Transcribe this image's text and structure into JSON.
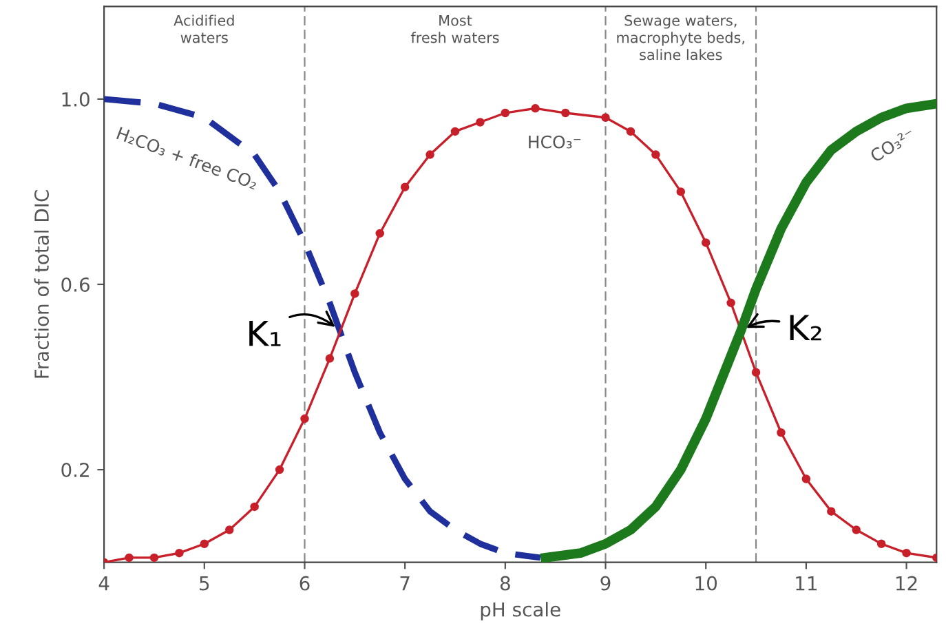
{
  "chart_data": {
    "type": "line",
    "xlabel": "pH scale",
    "ylabel": "Fraction of total DIC",
    "xlim": [
      4,
      12.3
    ],
    "ylim": [
      0,
      1.2
    ],
    "xticks": [
      4,
      5,
      6,
      7,
      8,
      9,
      10,
      11,
      12
    ],
    "yticks": [
      0.2,
      0.6,
      {
        "value": 1.0,
        "label": "1.0"
      }
    ],
    "grid": false,
    "series": [
      {
        "name": "H₂CO₃ + free CO₂",
        "color": "#1f2f9c",
        "line_style": "dashed",
        "marker": "none",
        "x": [
          4,
          4.5,
          5,
          5.5,
          5.75,
          6,
          6.25,
          6.5,
          6.75,
          7,
          7.25,
          7.5,
          7.75,
          8,
          8.35
        ],
        "values": [
          1.0,
          0.99,
          0.96,
          0.88,
          0.8,
          0.69,
          0.56,
          0.41,
          0.28,
          0.18,
          0.11,
          0.07,
          0.04,
          0.02,
          0.01
        ]
      },
      {
        "name": "HCO₃⁻",
        "color": "#c8202a",
        "line_style": "solid",
        "marker": "circle",
        "x": [
          4,
          4.25,
          4.5,
          4.75,
          5,
          5.25,
          5.5,
          5.75,
          6,
          6.25,
          6.5,
          6.75,
          7,
          7.25,
          7.5,
          7.75,
          8,
          8.3,
          8.6,
          9,
          9.25,
          9.5,
          9.75,
          10,
          10.25,
          10.5,
          10.75,
          11,
          11.25,
          11.5,
          11.75,
          12,
          12.3
        ],
        "values": [
          0.0,
          0.01,
          0.01,
          0.02,
          0.04,
          0.07,
          0.12,
          0.2,
          0.31,
          0.44,
          0.58,
          0.71,
          0.81,
          0.88,
          0.93,
          0.95,
          0.97,
          0.98,
          0.97,
          0.96,
          0.93,
          0.88,
          0.8,
          0.69,
          0.56,
          0.41,
          0.28,
          0.18,
          0.11,
          0.07,
          0.04,
          0.02,
          0.01
        ]
      },
      {
        "name": "CO₃²⁻",
        "color": "#1c7a1c",
        "line_style": "solid",
        "marker": "none",
        "x": [
          8.4,
          8.75,
          9,
          9.25,
          9.5,
          9.75,
          10,
          10.35,
          10.5,
          10.75,
          11,
          11.25,
          11.5,
          11.75,
          12,
          12.3
        ],
        "values": [
          0.01,
          0.02,
          0.04,
          0.07,
          0.12,
          0.2,
          0.31,
          0.5,
          0.59,
          0.72,
          0.82,
          0.89,
          0.93,
          0.96,
          0.98,
          0.99
        ]
      }
    ],
    "ref_lines": [
      {
        "axis": "x",
        "value": 6,
        "color": "#888888",
        "line_style": "dashed"
      },
      {
        "axis": "x",
        "value": 9,
        "color": "#888888",
        "line_style": "dashed"
      },
      {
        "axis": "x",
        "value": 10.5,
        "color": "#888888",
        "line_style": "dashed"
      }
    ],
    "annotations": [
      "Acidified\nwaters",
      "Most\nfresh waters",
      "Sewage waters,\nmacrophyte beds,\nsaline lakes",
      {
        "text": "K₁",
        "x": 6.35,
        "y": 0.5
      },
      {
        "text": "K₂",
        "x": 10.35,
        "y": 0.5
      }
    ]
  }
}
